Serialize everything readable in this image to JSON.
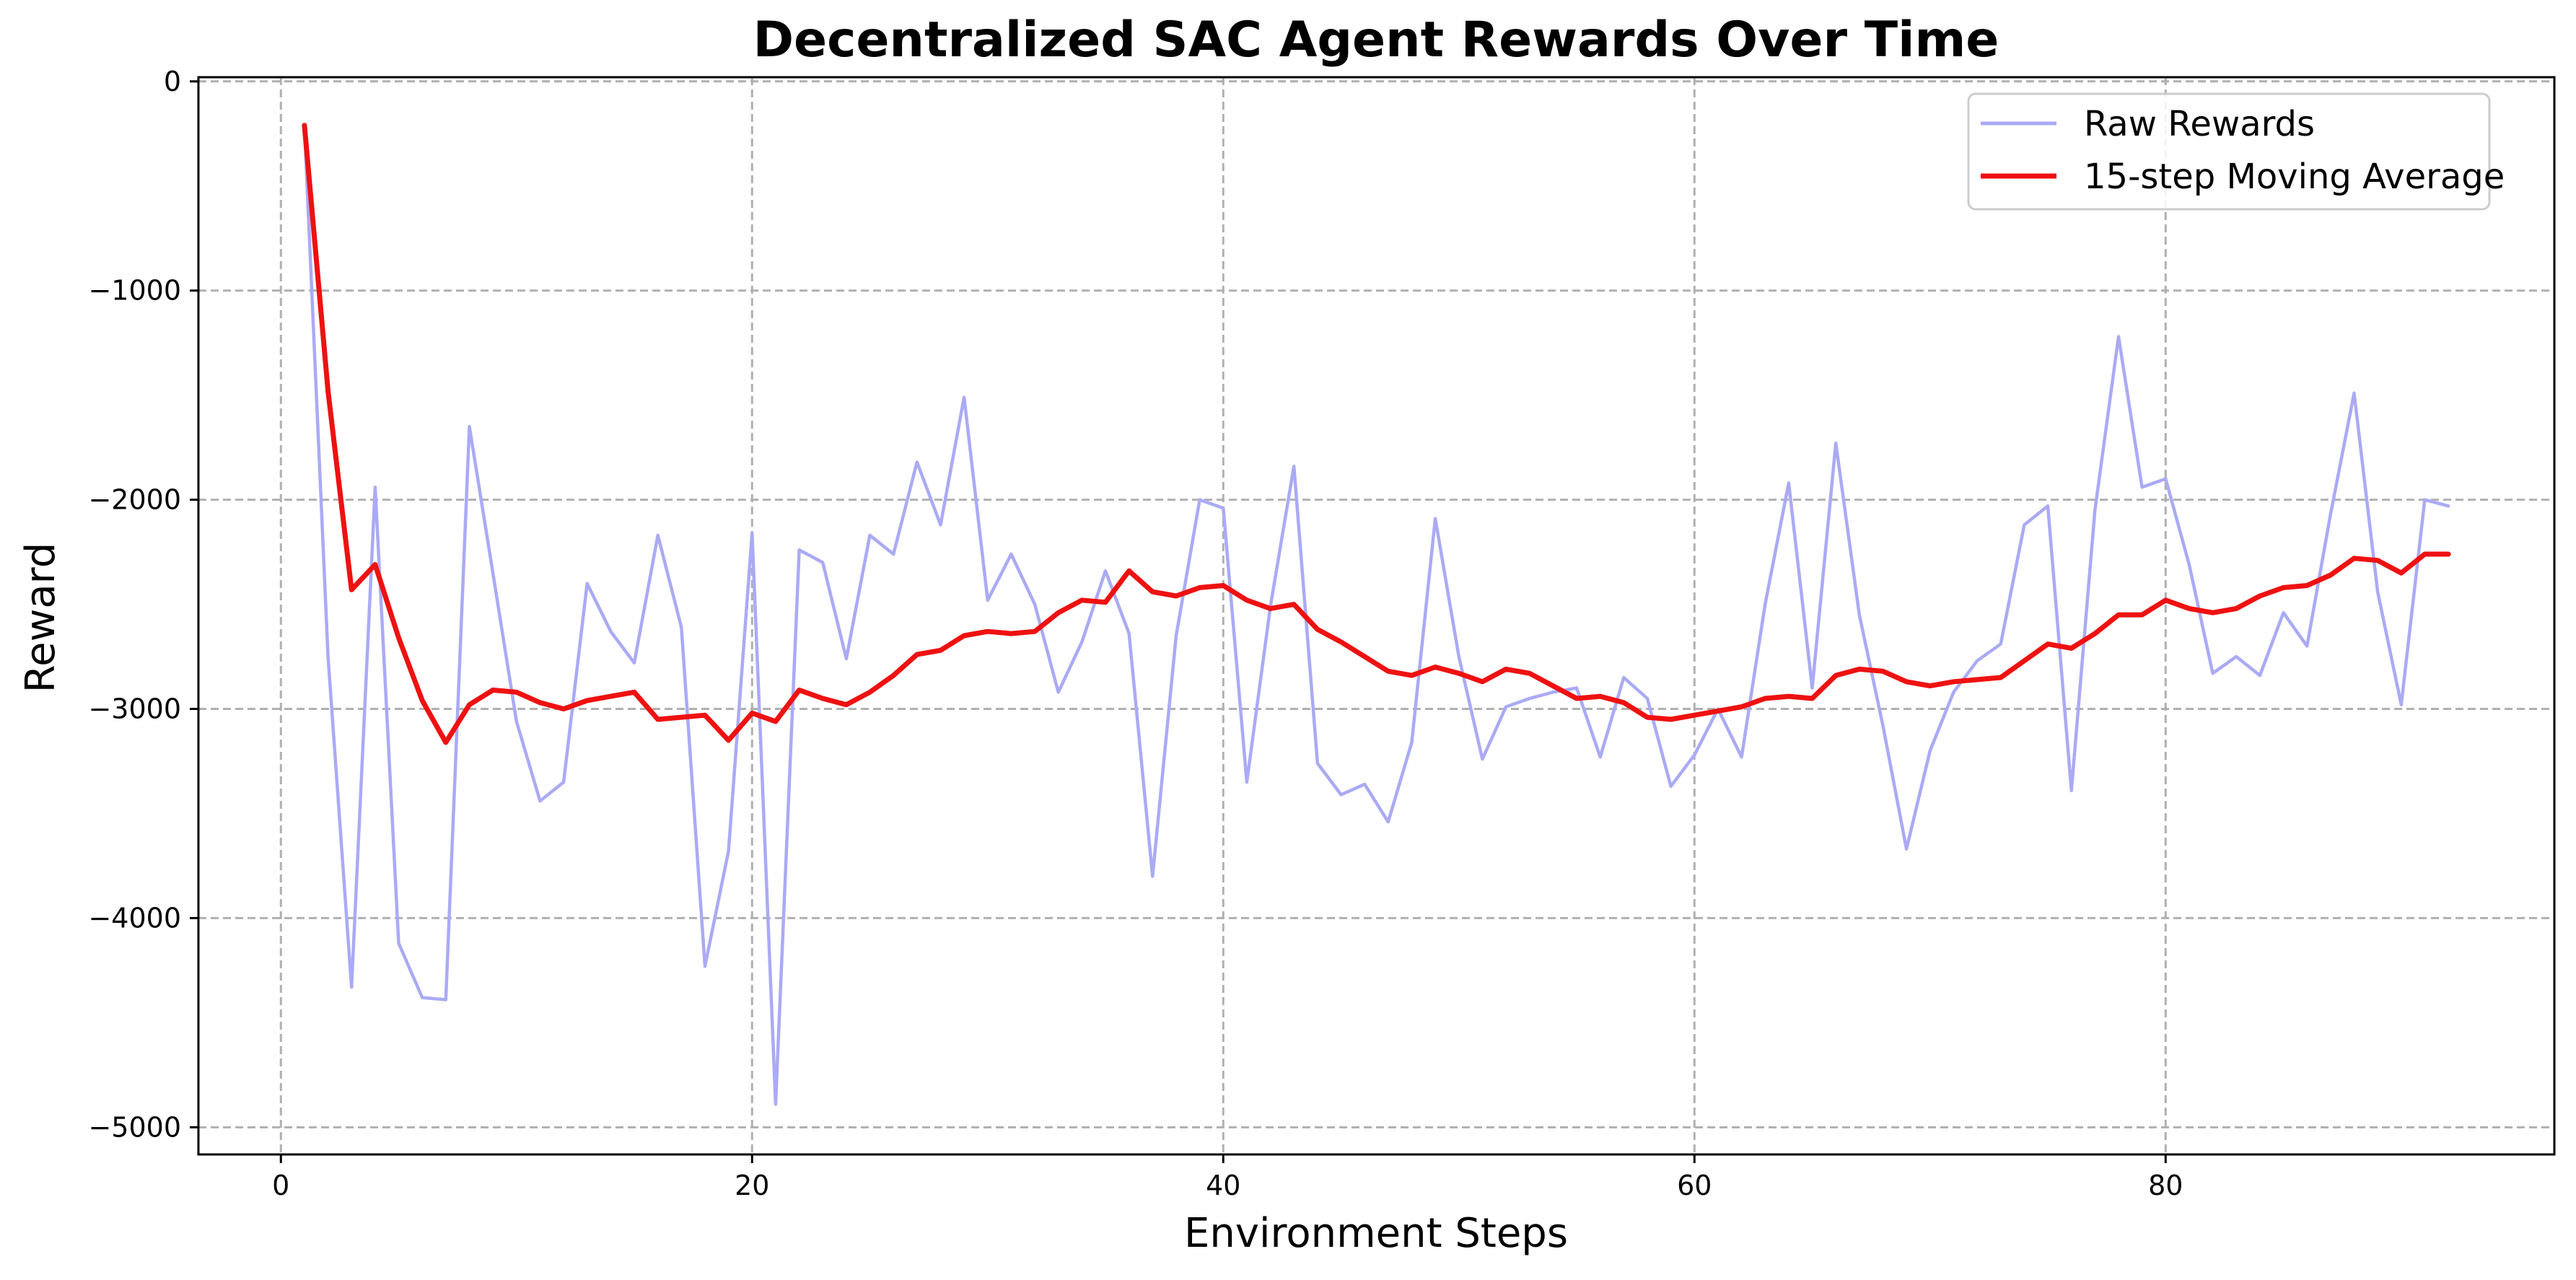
{
  "chart_data": {
    "type": "line",
    "title": "Decentralized SAC Agent Rewards Over Time",
    "xlabel": "Environment Steps",
    "ylabel": "Reward",
    "xlim": [
      -3.5,
      96.5
    ],
    "ylim": [
      -5130,
      20
    ],
    "xticks": [
      0,
      20,
      40,
      60,
      80
    ],
    "yticks": [
      0,
      -1000,
      -2000,
      -3000,
      -4000,
      -5000
    ],
    "ytick_labels": [
      "0",
      "−1000",
      "−2000",
      "−3000",
      "−4000",
      "−5000"
    ],
    "grid": true,
    "legend_position": "top-right",
    "x": [
      1,
      2,
      3,
      4,
      5,
      6,
      7,
      8,
      9,
      10,
      11,
      12,
      13,
      14,
      15,
      16,
      17,
      18,
      19,
      20,
      21,
      22,
      23,
      24,
      25,
      26,
      27,
      28,
      29,
      30,
      31,
      32,
      33,
      34,
      35,
      36,
      37,
      38,
      39,
      40,
      41,
      42,
      43,
      44,
      45,
      46,
      47,
      48,
      49,
      50,
      51,
      52,
      53,
      54,
      55,
      56,
      57,
      58,
      59,
      60,
      61,
      62,
      63,
      64,
      65,
      66,
      67,
      68,
      69,
      70,
      71,
      72,
      73,
      74,
      75,
      76,
      77,
      78,
      79,
      80,
      81,
      82,
      83,
      84,
      85,
      86,
      87,
      88,
      89,
      90,
      91,
      92
    ],
    "series": [
      {
        "name": "Raw Rewards",
        "color": "#aaaaf5",
        "values": [
          -210,
          -2750,
          -4330,
          -1940,
          -4120,
          -4380,
          -4390,
          -1650,
          -2350,
          -3060,
          -3440,
          -3350,
          -2400,
          -2630,
          -2780,
          -2170,
          -2610,
          -4230,
          -3680,
          -2160,
          -4890,
          -2240,
          -2300,
          -2760,
          -2170,
          -2260,
          -1820,
          -2120,
          -1510,
          -2480,
          -2260,
          -2500,
          -2920,
          -2680,
          -2340,
          -2640,
          -3800,
          -2650,
          -2000,
          -2040,
          -3350,
          -2510,
          -1840,
          -3260,
          -3410,
          -3360,
          -3540,
          -3160,
          -2090,
          -2750,
          -3240,
          -2990,
          -2950,
          -2920,
          -2900,
          -3230,
          -2850,
          -2950,
          -3370,
          -3220,
          -3000,
          -3230,
          -2500,
          -1920,
          -2900,
          -1730,
          -2550,
          -3080,
          -3670,
          -3200,
          -2920,
          -2770,
          -2690,
          -2120,
          -2030,
          -3390,
          -2050,
          -1220,
          -1940,
          -1900,
          -2310,
          -2830,
          -2750,
          -2840,
          -2540,
          -2700,
          -2070,
          -1490,
          -2440,
          -2980,
          -2000,
          -2030
        ]
      },
      {
        "name": "15-step Moving Average",
        "color": "#ee1111",
        "values": [
          -210,
          -1480,
          -2430,
          -2310,
          -2660,
          -2960,
          -3160,
          -2980,
          -2910,
          -2920,
          -2970,
          -3000,
          -2960,
          -2940,
          -2920,
          -3050,
          -3040,
          -3030,
          -3150,
          -3020,
          -3060,
          -2910,
          -2950,
          -2980,
          -2920,
          -2840,
          -2740,
          -2720,
          -2650,
          -2630,
          -2640,
          -2630,
          -2540,
          -2480,
          -2490,
          -2340,
          -2440,
          -2460,
          -2420,
          -2410,
          -2480,
          -2520,
          -2500,
          -2620,
          -2680,
          -2750,
          -2820,
          -2840,
          -2800,
          -2830,
          -2870,
          -2810,
          -2830,
          -2890,
          -2950,
          -2940,
          -2970,
          -3040,
          -3050,
          -3030,
          -3010,
          -2990,
          -2950,
          -2940,
          -2950,
          -2840,
          -2810,
          -2820,
          -2870,
          -2890,
          -2870,
          -2860,
          -2850,
          -2770,
          -2690,
          -2710,
          -2640,
          -2550,
          -2550,
          -2480,
          -2520,
          -2540,
          -2520,
          -2460,
          -2420,
          -2410,
          -2360,
          -2280,
          -2290,
          -2350,
          -2260,
          -2260
        ]
      }
    ]
  }
}
